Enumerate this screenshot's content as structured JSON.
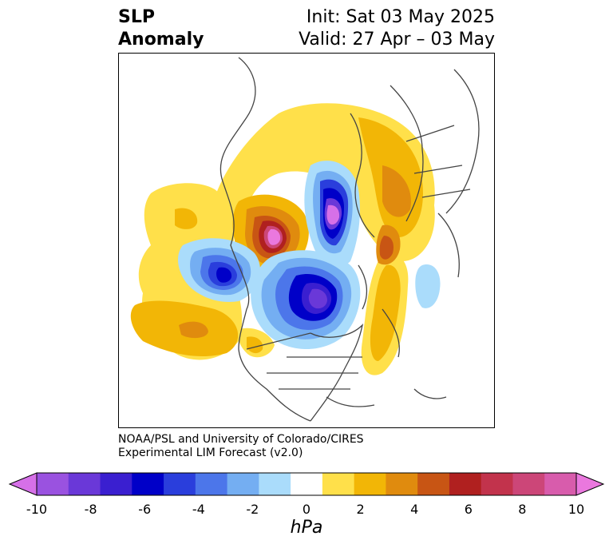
{
  "title": {
    "left_line1": "SLP",
    "left_line2": "Anomaly",
    "right_line1": "Init: Sat 03 May 2025",
    "right_line2": "Valid: 27 Apr – 03 May"
  },
  "credit": {
    "line1": "NOAA/PSL and University of Colorado/CIRES",
    "line2": "Experimental LIM Forecast (v2.0)"
  },
  "colorbar": {
    "unit": "hPa",
    "tick_labels": [
      "-10",
      "-8",
      "-6",
      "-4",
      "-2",
      "0",
      "2",
      "4",
      "6",
      "8",
      "10"
    ],
    "colors": [
      "#d670e8",
      "#9a52e0",
      "#6a38d8",
      "#3a1fd0",
      "#0000c8",
      "#2a3edc",
      "#4c76ea",
      "#74aef2",
      "#aadcfb",
      "#ffffff",
      "#ffe04a",
      "#f2b606",
      "#e08b0e",
      "#c85514",
      "#b0201f",
      "#c2334c",
      "#cc4678",
      "#d85cac",
      "#ea78de"
    ],
    "range": [
      -10,
      10
    ]
  },
  "map": {
    "projection": "north-polar-stereographic",
    "features": [
      "coastlines",
      "country-borders",
      "us-state-borders"
    ]
  }
}
